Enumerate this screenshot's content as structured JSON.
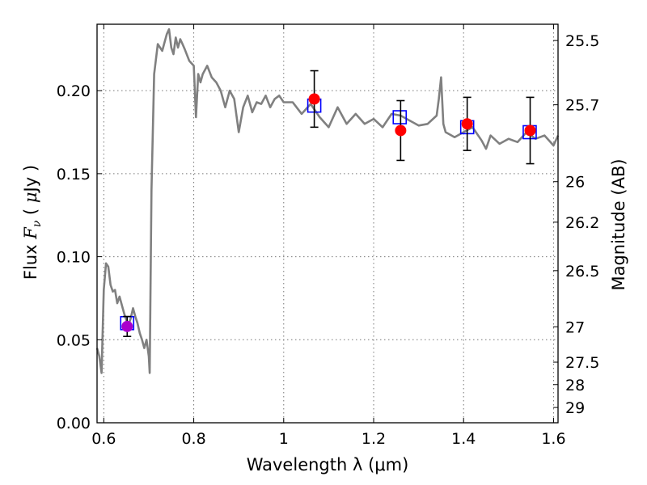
{
  "chart_data": {
    "type": "line",
    "xlabel": "Wavelength  λ (μm)",
    "ylabel": "Flux  F_ν  ( μJy )",
    "ylabel_right": "Magnitude (AB)",
    "xlim": [
      0.585,
      1.61
    ],
    "ylim": [
      0.0,
      0.24
    ],
    "grid": true,
    "x_ticks": [
      0.6,
      0.8,
      1.0,
      1.2,
      1.4,
      1.6
    ],
    "x_tick_labels": [
      "0.6",
      "0.8",
      "1",
      "1.2",
      "1.4",
      "1.6"
    ],
    "y_ticks": [
      0.0,
      0.05,
      0.1,
      0.15,
      0.2
    ],
    "y_tick_labels": [
      "0.00",
      "0.05",
      "0.10",
      "0.15",
      "0.20"
    ],
    "right_ticks": [
      {
        "label": "25.5",
        "flux": 0.2302
      },
      {
        "label": "25.7",
        "flux": 0.1915
      },
      {
        "label": "26",
        "flux": 0.1452
      },
      {
        "label": "26.2",
        "flux": 0.1208
      },
      {
        "label": "26.5",
        "flux": 0.0916
      },
      {
        "label": "27",
        "flux": 0.0578
      },
      {
        "label": "27.5",
        "flux": 0.0365
      },
      {
        "label": "28",
        "flux": 0.023
      },
      {
        "label": "29",
        "flux": 0.0092
      }
    ],
    "colors": {
      "spectrum": "#808080",
      "model_box": "#0000ff",
      "observed": "#ff0000",
      "observed_special": "#aa00cc",
      "error_bar": "#000000",
      "grid": "#777777"
    },
    "spectrum": {
      "x": [
        0.585,
        0.59,
        0.595,
        0.6,
        0.605,
        0.61,
        0.615,
        0.62,
        0.625,
        0.63,
        0.635,
        0.64,
        0.645,
        0.65,
        0.655,
        0.66,
        0.665,
        0.67,
        0.675,
        0.68,
        0.685,
        0.69,
        0.695,
        0.7,
        0.702,
        0.706,
        0.712,
        0.72,
        0.73,
        0.74,
        0.745,
        0.75,
        0.755,
        0.76,
        0.765,
        0.77,
        0.775,
        0.78,
        0.79,
        0.8,
        0.805,
        0.81,
        0.815,
        0.82,
        0.83,
        0.84,
        0.85,
        0.86,
        0.87,
        0.88,
        0.89,
        0.9,
        0.91,
        0.92,
        0.93,
        0.94,
        0.95,
        0.96,
        0.97,
        0.98,
        0.99,
        1.0,
        1.02,
        1.04,
        1.06,
        1.08,
        1.1,
        1.12,
        1.14,
        1.16,
        1.18,
        1.2,
        1.22,
        1.24,
        1.26,
        1.28,
        1.3,
        1.32,
        1.34,
        1.345,
        1.35,
        1.355,
        1.36,
        1.38,
        1.4,
        1.42,
        1.44,
        1.45,
        1.46,
        1.48,
        1.5,
        1.52,
        1.54,
        1.56,
        1.58,
        1.6,
        1.61
      ],
      "y": [
        0.045,
        0.04,
        0.03,
        0.08,
        0.096,
        0.094,
        0.083,
        0.079,
        0.08,
        0.072,
        0.076,
        0.071,
        0.066,
        0.062,
        0.059,
        0.063,
        0.069,
        0.064,
        0.06,
        0.054,
        0.05,
        0.045,
        0.05,
        0.04,
        0.03,
        0.14,
        0.21,
        0.228,
        0.224,
        0.234,
        0.237,
        0.226,
        0.222,
        0.232,
        0.226,
        0.231,
        0.228,
        0.225,
        0.218,
        0.215,
        0.184,
        0.21,
        0.205,
        0.21,
        0.215,
        0.208,
        0.205,
        0.2,
        0.19,
        0.2,
        0.195,
        0.175,
        0.19,
        0.197,
        0.187,
        0.193,
        0.192,
        0.197,
        0.19,
        0.195,
        0.197,
        0.193,
        0.193,
        0.186,
        0.192,
        0.184,
        0.178,
        0.19,
        0.18,
        0.186,
        0.18,
        0.183,
        0.178,
        0.186,
        0.185,
        0.182,
        0.179,
        0.18,
        0.185,
        0.195,
        0.208,
        0.18,
        0.175,
        0.172,
        0.175,
        0.178,
        0.17,
        0.165,
        0.173,
        0.168,
        0.171,
        0.169,
        0.175,
        0.171,
        0.173,
        0.167,
        0.173
      ]
    },
    "model_points": [
      {
        "x": 0.652,
        "y": 0.06
      },
      {
        "x": 1.068,
        "y": 0.191
      },
      {
        "x": 1.258,
        "y": 0.184
      },
      {
        "x": 1.408,
        "y": 0.178
      },
      {
        "x": 1.547,
        "y": 0.175
      }
    ],
    "observed_points": [
      {
        "x": 0.652,
        "y": 0.058,
        "yerr": 0.006,
        "special": true
      },
      {
        "x": 1.068,
        "y": 0.195,
        "yerr": 0.017
      },
      {
        "x": 1.26,
        "y": 0.176,
        "yerr": 0.018
      },
      {
        "x": 1.408,
        "y": 0.18,
        "yerr": 0.016
      },
      {
        "x": 1.548,
        "y": 0.176,
        "yerr": 0.02
      }
    ]
  }
}
